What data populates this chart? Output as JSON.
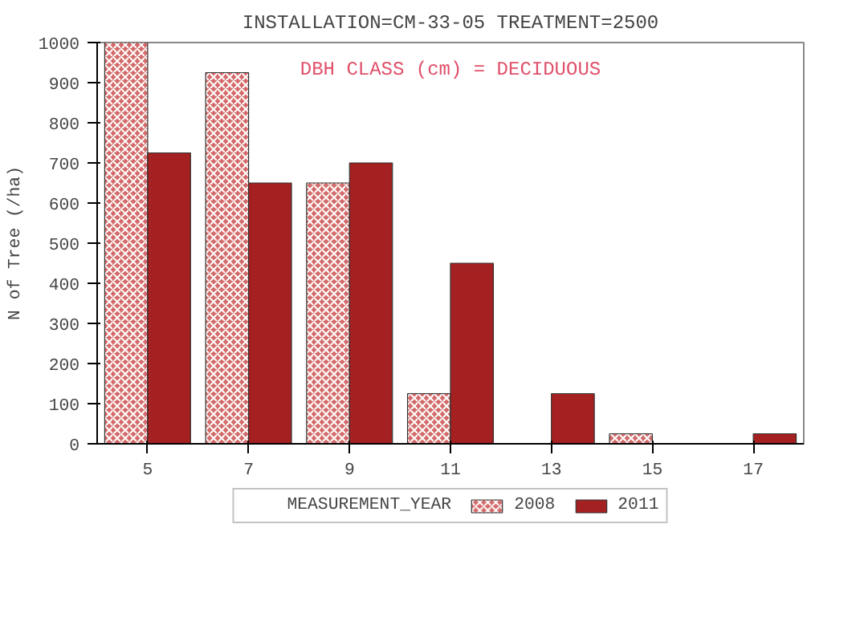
{
  "chart_data": {
    "type": "bar",
    "title": "INSTALLATION=CM-33-05 TREATMENT=2500",
    "xlabel": null,
    "ylabel": "N of Tree (/ha)",
    "legend_title": "MEASUREMENT_YEAR",
    "annotations": [
      "DBH CLASS (cm) = DECIDUOUS"
    ],
    "categories": [
      "5",
      "7",
      "9",
      "11",
      "13",
      "15",
      "17"
    ],
    "series": [
      {
        "name": "2008",
        "color": "#d46a6a",
        "values": [
          1000,
          925,
          650,
          125,
          null,
          25,
          null
        ]
      },
      {
        "name": "2011",
        "color": "#a52020",
        "values": [
          725,
          650,
          700,
          450,
          125,
          null,
          25
        ]
      }
    ],
    "ylim": [
      0,
      1000
    ],
    "yticks": [
      0,
      100,
      200,
      300,
      400,
      500,
      600,
      700,
      800,
      900,
      1000
    ],
    "grid": false,
    "legend": "bottom"
  }
}
